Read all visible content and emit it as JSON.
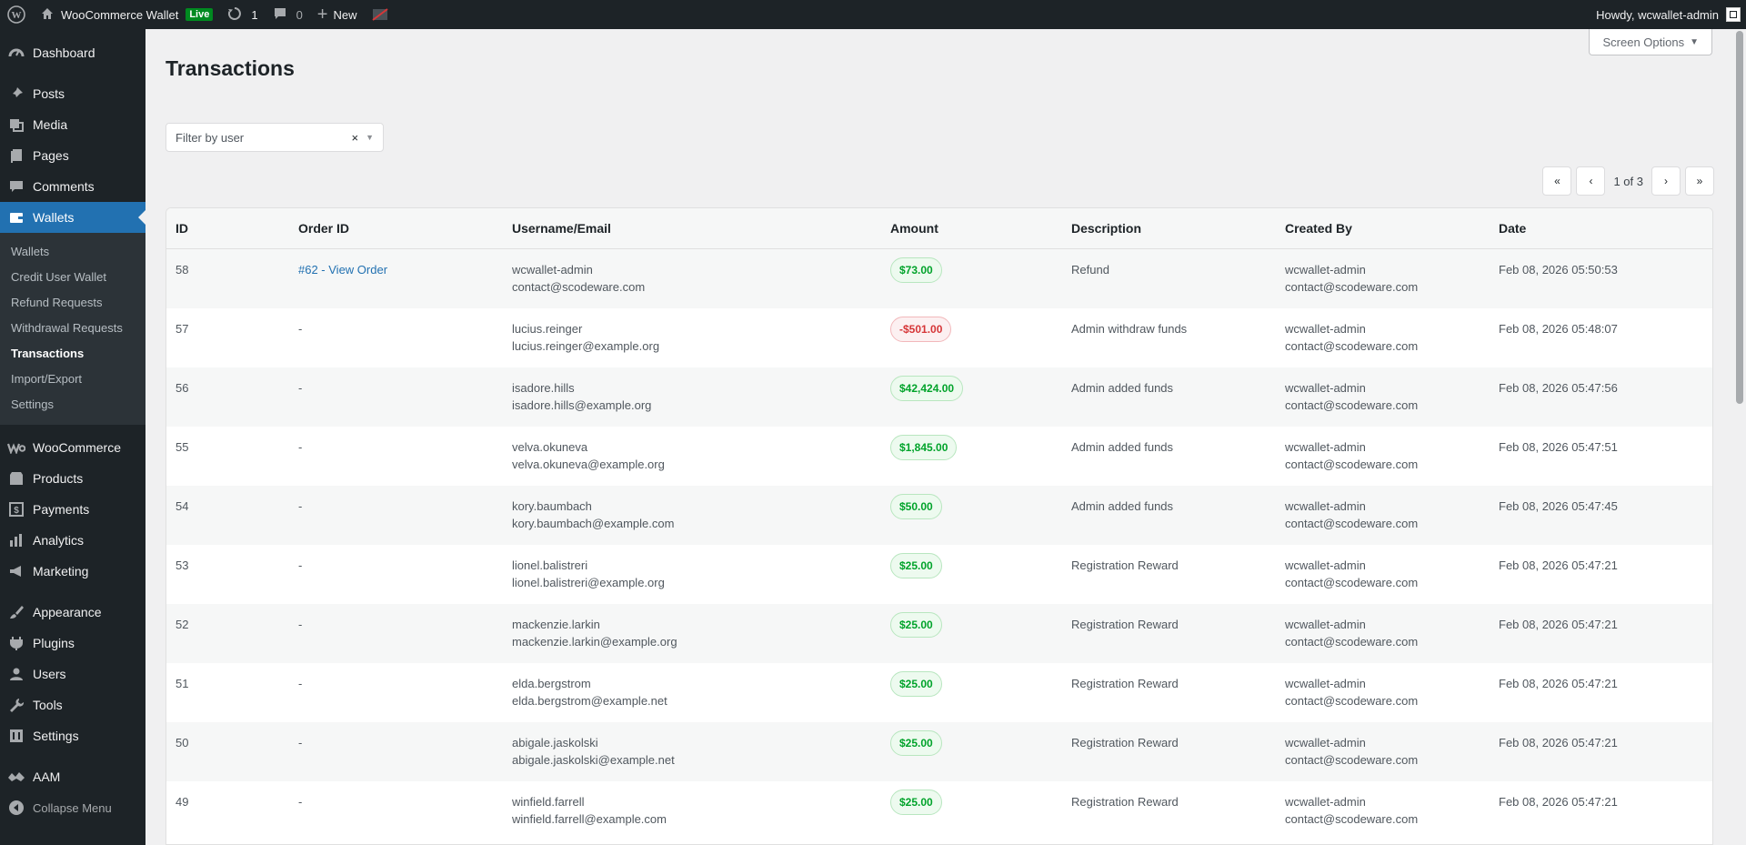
{
  "adminbar": {
    "site_name": "WooCommerce Wallet",
    "live_label": "Live",
    "updates_count": "1",
    "comments_count": "0",
    "new_label": "New",
    "howdy": "Howdy, wcwallet-admin"
  },
  "sidebar": {
    "dashboard": "Dashboard",
    "posts": "Posts",
    "media": "Media",
    "pages": "Pages",
    "comments": "Comments",
    "wallets": "Wallets",
    "submenu": [
      {
        "label": "Wallets"
      },
      {
        "label": "Credit User Wallet"
      },
      {
        "label": "Refund Requests"
      },
      {
        "label": "Withdrawal Requests"
      },
      {
        "label": "Transactions"
      },
      {
        "label": "Import/Export"
      },
      {
        "label": "Settings"
      }
    ],
    "woocommerce": "WooCommerce",
    "products": "Products",
    "payments": "Payments",
    "analytics": "Analytics",
    "marketing": "Marketing",
    "appearance": "Appearance",
    "plugins": "Plugins",
    "users": "Users",
    "tools": "Tools",
    "settings": "Settings",
    "aam": "AAM",
    "collapse": "Collapse Menu"
  },
  "screen_options": "Screen Options",
  "page_title": "Transactions",
  "filter": {
    "placeholder": "Filter by user",
    "clear": "×"
  },
  "pagination": {
    "first": "«",
    "prev": "‹",
    "text": "1 of 3",
    "next": "›",
    "last": "»"
  },
  "table": {
    "headers": {
      "id": "ID",
      "order": "Order ID",
      "user": "Username/Email",
      "amount": "Amount",
      "desc": "Description",
      "by": "Created By",
      "date": "Date"
    },
    "rows": [
      {
        "id": "58",
        "order": "#62 - View Order",
        "username": "wcwallet-admin",
        "email": "contact@scodeware.com",
        "amount": "$73.00",
        "desc": "Refund",
        "by_name": "wcwallet-admin",
        "by_email": "contact@scodeware.com",
        "date": "Feb 08, 2026 05:50:53"
      },
      {
        "id": "57",
        "order": "-",
        "username": "lucius.reinger",
        "email": "lucius.reinger@example.org",
        "amount": "-$501.00",
        "desc": "Admin withdraw funds",
        "by_name": "wcwallet-admin",
        "by_email": "contact@scodeware.com",
        "date": "Feb 08, 2026 05:48:07"
      },
      {
        "id": "56",
        "order": "-",
        "username": "isadore.hills",
        "email": "isadore.hills@example.org",
        "amount": "$42,424.00",
        "desc": "Admin added funds",
        "by_name": "wcwallet-admin",
        "by_email": "contact@scodeware.com",
        "date": "Feb 08, 2026 05:47:56"
      },
      {
        "id": "55",
        "order": "-",
        "username": "velva.okuneva",
        "email": "velva.okuneva@example.org",
        "amount": "$1,845.00",
        "desc": "Admin added funds",
        "by_name": "wcwallet-admin",
        "by_email": "contact@scodeware.com",
        "date": "Feb 08, 2026 05:47:51"
      },
      {
        "id": "54",
        "order": "-",
        "username": "kory.baumbach",
        "email": "kory.baumbach@example.com",
        "amount": "$50.00",
        "desc": "Admin added funds",
        "by_name": "wcwallet-admin",
        "by_email": "contact@scodeware.com",
        "date": "Feb 08, 2026 05:47:45"
      },
      {
        "id": "53",
        "order": "-",
        "username": "lionel.balistreri",
        "email": "lionel.balistreri@example.org",
        "amount": "$25.00",
        "desc": "Registration Reward",
        "by_name": "wcwallet-admin",
        "by_email": "contact@scodeware.com",
        "date": "Feb 08, 2026 05:47:21"
      },
      {
        "id": "52",
        "order": "-",
        "username": "mackenzie.larkin",
        "email": "mackenzie.larkin@example.org",
        "amount": "$25.00",
        "desc": "Registration Reward",
        "by_name": "wcwallet-admin",
        "by_email": "contact@scodeware.com",
        "date": "Feb 08, 2026 05:47:21"
      },
      {
        "id": "51",
        "order": "-",
        "username": "elda.bergstrom",
        "email": "elda.bergstrom@example.net",
        "amount": "$25.00",
        "desc": "Registration Reward",
        "by_name": "wcwallet-admin",
        "by_email": "contact@scodeware.com",
        "date": "Feb 08, 2026 05:47:21"
      },
      {
        "id": "50",
        "order": "-",
        "username": "abigale.jaskolski",
        "email": "abigale.jaskolski@example.net",
        "amount": "$25.00",
        "desc": "Registration Reward",
        "by_name": "wcwallet-admin",
        "by_email": "contact@scodeware.com",
        "date": "Feb 08, 2026 05:47:21"
      },
      {
        "id": "49",
        "order": "-",
        "username": "winfield.farrell",
        "email": "winfield.farrell@example.com",
        "amount": "$25.00",
        "desc": "Registration Reward",
        "by_name": "wcwallet-admin",
        "by_email": "contact@scodeware.com",
        "date": "Feb 08, 2026 05:47:21"
      }
    ]
  },
  "colors": {
    "admin_bar_bg": "#1d2327",
    "menu_current": "#2271b1",
    "positive": "#00a32a",
    "negative": "#d63638"
  }
}
